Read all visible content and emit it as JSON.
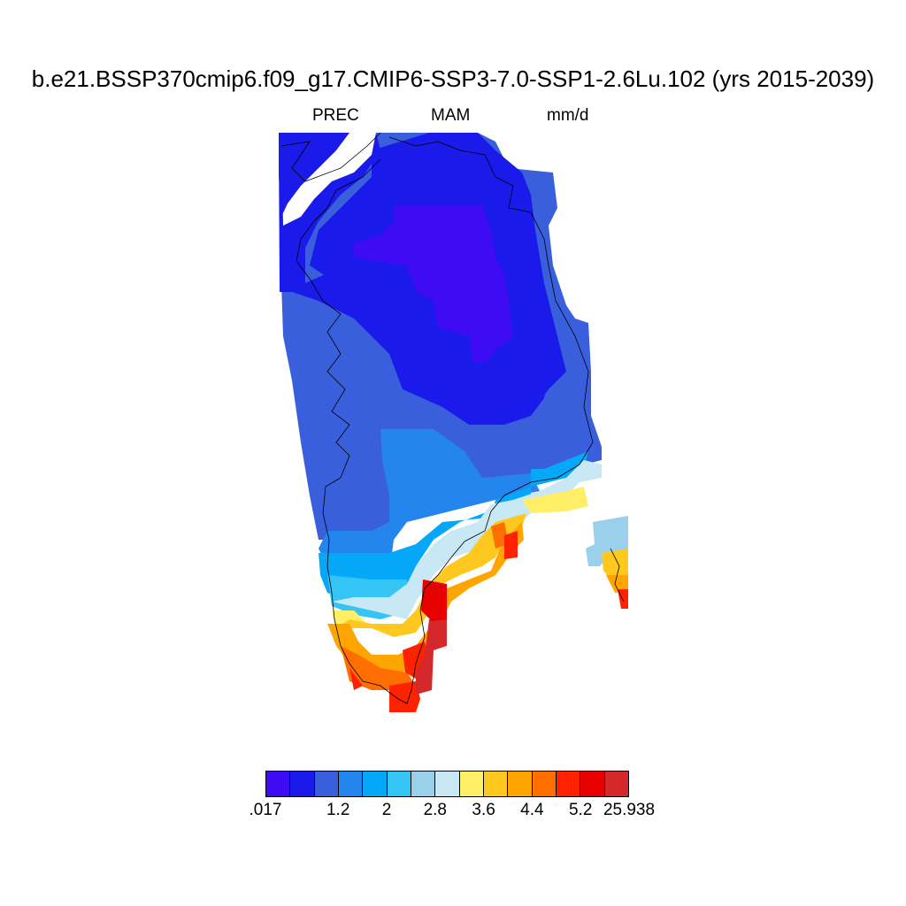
{
  "title": "b.e21.BSSP370cmip6.f09_g17.CMIP6-SSP3-7.0-SSP1-2.6Lu.102 (yrs 2015-2039)",
  "subtitle": {
    "variable": "PREC",
    "season": "MAM",
    "units": "mm/d"
  },
  "colorbar": {
    "colors": [
      "#3d0cf5",
      "#1a1aeb",
      "#3a5fdc",
      "#2585ee",
      "#05a8f8",
      "#34c5f5",
      "#9bd0ea",
      "#c8e8f6",
      "#ffee66",
      "#ffc81e",
      "#ffa500",
      "#ff6e00",
      "#ff2200",
      "#e80000",
      "#d4282a"
    ],
    "labels": [
      ".017",
      "1.2",
      "2",
      "2.8",
      "3.6",
      "4.4",
      "5.2",
      "25.938"
    ]
  },
  "map": {
    "region": "Greenland",
    "field": "precipitation",
    "legend_placement": "bottom"
  }
}
